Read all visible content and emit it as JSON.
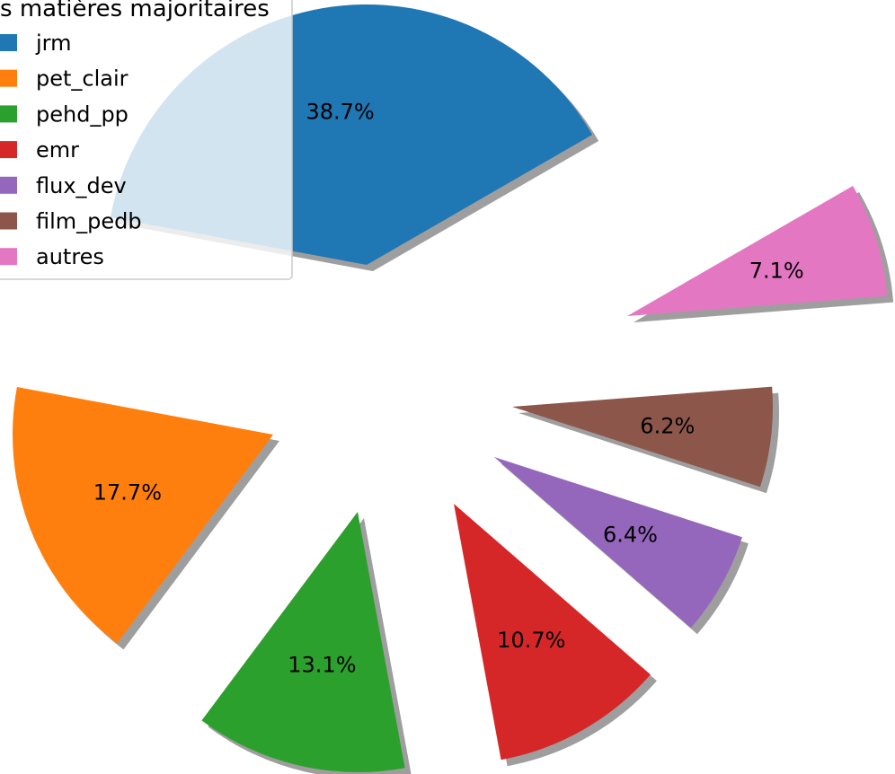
{
  "chart_data": {
    "type": "pie",
    "title": "",
    "categories": [
      "jrm",
      "pet_clair",
      "pehd_pp",
      "emr",
      "flux_dev",
      "film_pedb",
      "autres"
    ],
    "values": [
      38.7,
      17.7,
      13.1,
      10.7,
      6.4,
      6.2,
      7.1
    ],
    "value_labels": [
      "38.7%",
      "17.7%",
      "13.1%",
      "10.7%",
      "6.4%",
      "6.2%",
      "7.1%"
    ],
    "colors": [
      "#1f77b4",
      "#ff7f0e",
      "#2ca02c",
      "#d62728",
      "#9467bd",
      "#8c564b",
      "#e377c2"
    ],
    "start_angle_deg": 30,
    "direction": "counterclockwise",
    "shadow": true,
    "exploded": true,
    "legend": {
      "title": "Les matières majoritaires",
      "placement": "top-left",
      "entries": [
        "jrm",
        "pet_clair",
        "pehd_pp",
        "emr",
        "flux_dev",
        "film_pedb",
        "autres"
      ]
    }
  }
}
